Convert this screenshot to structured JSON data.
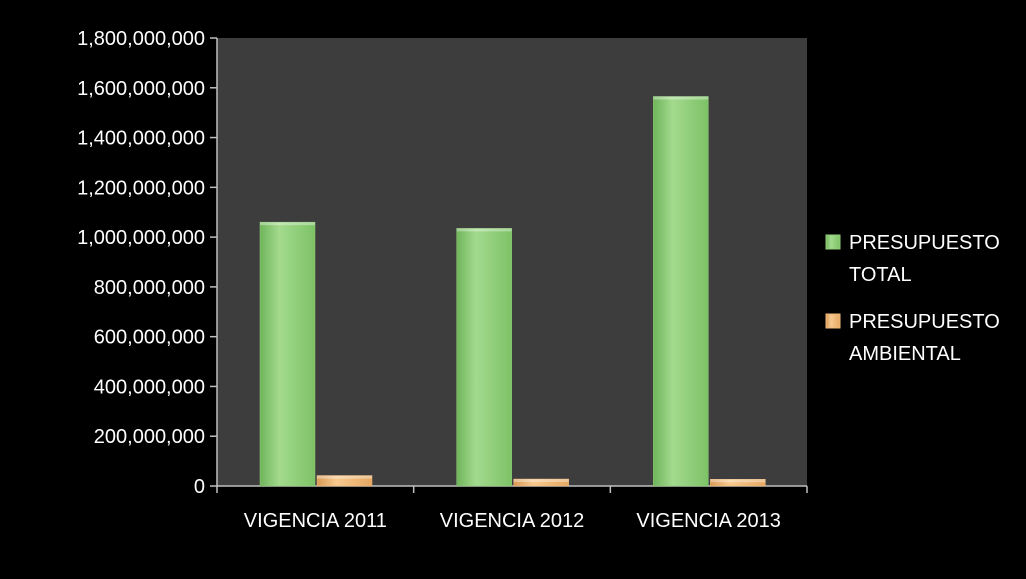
{
  "chart_data": {
    "type": "bar",
    "categories": [
      "VIGENCIA 2011",
      "VIGENCIA 2012",
      "VIGENCIA 2013"
    ],
    "series": [
      {
        "name": "PRESUPUESTO TOTAL",
        "values": [
          1060000000,
          1035000000,
          1565000000
        ],
        "color": "#8fcf78"
      },
      {
        "name": "PRESUPUESTO AMBIENTAL",
        "values": [
          42000000,
          28000000,
          27000000
        ],
        "color": "#f0b877"
      }
    ],
    "y_ticks": [
      "0",
      "200,000,000",
      "400,000,000",
      "600,000,000",
      "800,000,000",
      "1,000,000,000",
      "1,200,000,000",
      "1,400,000,000",
      "1,600,000,000",
      "1,800,000,000"
    ],
    "ylim": [
      0,
      1800000000
    ],
    "grid": false,
    "legend_position": "right",
    "colors": {
      "background": "#000000",
      "plot_area": "#3d3d3d",
      "axis": "#bfbfbf",
      "text": "#ffffff"
    }
  }
}
